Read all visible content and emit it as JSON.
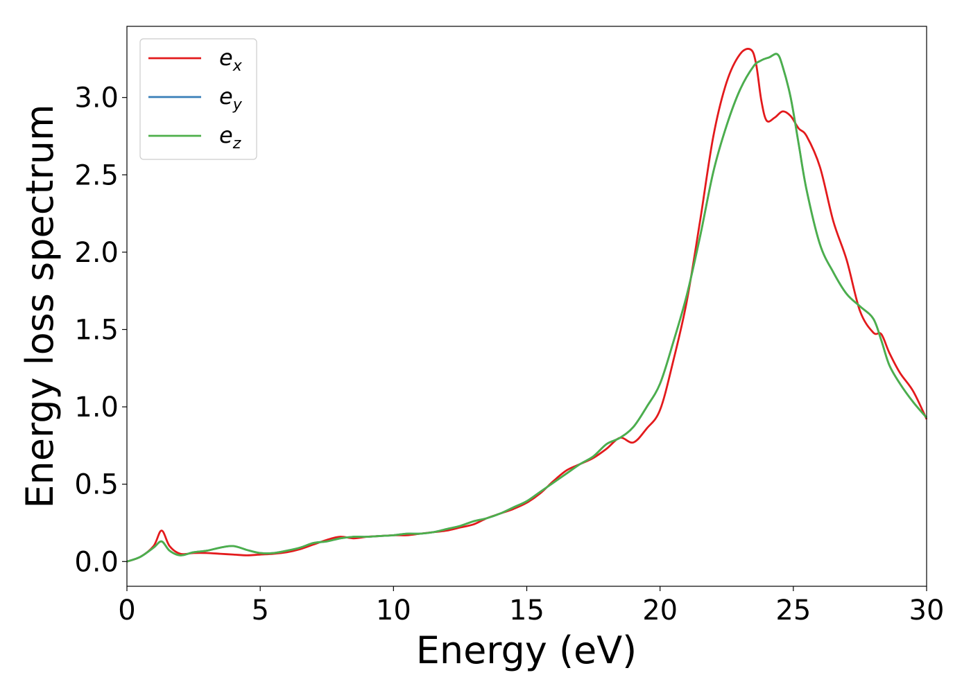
{
  "chart_data": {
    "type": "line",
    "xlabel": "Energy (eV)",
    "ylabel": "Energy loss spectrum",
    "xlim": [
      0,
      30
    ],
    "ylim": [
      -0.16,
      3.46
    ],
    "xticks": [
      0,
      5,
      10,
      15,
      20,
      25,
      30
    ],
    "xtick_labels": [
      "0",
      "5",
      "10",
      "15",
      "20",
      "25",
      "30"
    ],
    "yticks": [
      0.0,
      0.5,
      1.0,
      1.5,
      2.0,
      2.5,
      3.0
    ],
    "ytick_labels": [
      "0.0",
      "0.5",
      "1.0",
      "1.5",
      "2.0",
      "2.5",
      "3.0"
    ],
    "grid": false,
    "legend_position": "top-left",
    "series": [
      {
        "name": "e",
        "name_subscript": "x",
        "color": "#e31a1c",
        "x": [
          0,
          0.5,
          1.0,
          1.3,
          1.6,
          2.0,
          2.5,
          3.0,
          3.5,
          4.0,
          4.5,
          5.0,
          5.5,
          6.0,
          6.5,
          7.0,
          7.5,
          8.0,
          8.5,
          9.0,
          9.5,
          10.0,
          10.5,
          11.0,
          11.5,
          12.0,
          12.5,
          13.0,
          13.5,
          14.0,
          14.5,
          15.0,
          15.5,
          16.0,
          16.5,
          17.0,
          17.5,
          18.0,
          18.5,
          19.0,
          19.5,
          20.0,
          20.5,
          21.0,
          21.5,
          22.0,
          22.5,
          23.0,
          23.4,
          23.6,
          23.8,
          24.0,
          24.3,
          24.6,
          24.9,
          25.2,
          25.5,
          26.0,
          26.5,
          27.0,
          27.5,
          28.0,
          28.3,
          28.6,
          29.0,
          29.5,
          30.0
        ],
        "values": [
          0.0,
          0.03,
          0.1,
          0.2,
          0.1,
          0.05,
          0.055,
          0.055,
          0.05,
          0.045,
          0.04,
          0.045,
          0.05,
          0.06,
          0.08,
          0.11,
          0.14,
          0.16,
          0.15,
          0.16,
          0.165,
          0.17,
          0.17,
          0.18,
          0.19,
          0.2,
          0.22,
          0.24,
          0.28,
          0.31,
          0.34,
          0.38,
          0.44,
          0.52,
          0.59,
          0.63,
          0.67,
          0.73,
          0.8,
          0.77,
          0.86,
          0.98,
          1.3,
          1.68,
          2.2,
          2.75,
          3.1,
          3.28,
          3.31,
          3.22,
          2.98,
          2.85,
          2.87,
          2.91,
          2.88,
          2.8,
          2.75,
          2.55,
          2.2,
          1.95,
          1.62,
          1.48,
          1.47,
          1.35,
          1.22,
          1.1,
          0.92
        ]
      },
      {
        "name": "e",
        "name_subscript": "y",
        "color": "#377eb8",
        "x": [
          0,
          0.5,
          1.0,
          1.3,
          1.6,
          2.0,
          2.5,
          3.0,
          3.5,
          4.0,
          4.5,
          5.0,
          5.5,
          6.0,
          6.5,
          7.0,
          7.5,
          8.0,
          8.5,
          9.0,
          9.5,
          10.0,
          10.5,
          11.0,
          11.5,
          12.0,
          12.5,
          13.0,
          13.5,
          14.0,
          14.5,
          15.0,
          15.5,
          16.0,
          16.5,
          17.0,
          17.5,
          18.0,
          18.5,
          19.0,
          19.5,
          20.0,
          20.5,
          21.0,
          21.5,
          22.0,
          22.5,
          23.0,
          23.5,
          23.8,
          24.1,
          24.4,
          24.6,
          24.9,
          25.2,
          25.5,
          26.0,
          26.5,
          27.0,
          27.5,
          28.0,
          28.3,
          28.6,
          29.0,
          29.5,
          30.0
        ],
        "values": [
          0.0,
          0.03,
          0.09,
          0.13,
          0.07,
          0.04,
          0.06,
          0.07,
          0.09,
          0.1,
          0.075,
          0.055,
          0.055,
          0.07,
          0.09,
          0.12,
          0.13,
          0.15,
          0.16,
          0.16,
          0.165,
          0.17,
          0.18,
          0.18,
          0.19,
          0.21,
          0.23,
          0.26,
          0.28,
          0.31,
          0.35,
          0.39,
          0.45,
          0.51,
          0.57,
          0.63,
          0.68,
          0.76,
          0.8,
          0.87,
          1.0,
          1.15,
          1.42,
          1.72,
          2.1,
          2.52,
          2.82,
          3.05,
          3.2,
          3.24,
          3.26,
          3.28,
          3.2,
          3.0,
          2.7,
          2.4,
          2.05,
          1.87,
          1.73,
          1.65,
          1.57,
          1.43,
          1.27,
          1.15,
          1.03,
          0.93
        ]
      },
      {
        "name": "e",
        "name_subscript": "z",
        "color": "#4daf4a",
        "x": [
          0,
          0.5,
          1.0,
          1.3,
          1.6,
          2.0,
          2.5,
          3.0,
          3.5,
          4.0,
          4.5,
          5.0,
          5.5,
          6.0,
          6.5,
          7.0,
          7.5,
          8.0,
          8.5,
          9.0,
          9.5,
          10.0,
          10.5,
          11.0,
          11.5,
          12.0,
          12.5,
          13.0,
          13.5,
          14.0,
          14.5,
          15.0,
          15.5,
          16.0,
          16.5,
          17.0,
          17.5,
          18.0,
          18.5,
          19.0,
          19.5,
          20.0,
          20.5,
          21.0,
          21.5,
          22.0,
          22.5,
          23.0,
          23.5,
          23.8,
          24.1,
          24.4,
          24.6,
          24.9,
          25.2,
          25.5,
          26.0,
          26.5,
          27.0,
          27.5,
          28.0,
          28.3,
          28.6,
          29.0,
          29.5,
          30.0
        ],
        "values": [
          0.0,
          0.03,
          0.09,
          0.13,
          0.07,
          0.04,
          0.06,
          0.07,
          0.09,
          0.1,
          0.075,
          0.055,
          0.055,
          0.07,
          0.09,
          0.12,
          0.13,
          0.15,
          0.16,
          0.16,
          0.165,
          0.17,
          0.18,
          0.18,
          0.19,
          0.21,
          0.23,
          0.26,
          0.28,
          0.31,
          0.35,
          0.39,
          0.45,
          0.51,
          0.57,
          0.63,
          0.68,
          0.76,
          0.8,
          0.87,
          1.0,
          1.15,
          1.42,
          1.72,
          2.1,
          2.52,
          2.82,
          3.05,
          3.2,
          3.24,
          3.26,
          3.28,
          3.2,
          3.0,
          2.7,
          2.4,
          2.05,
          1.87,
          1.73,
          1.65,
          1.57,
          1.43,
          1.27,
          1.15,
          1.03,
          0.93
        ]
      }
    ]
  }
}
